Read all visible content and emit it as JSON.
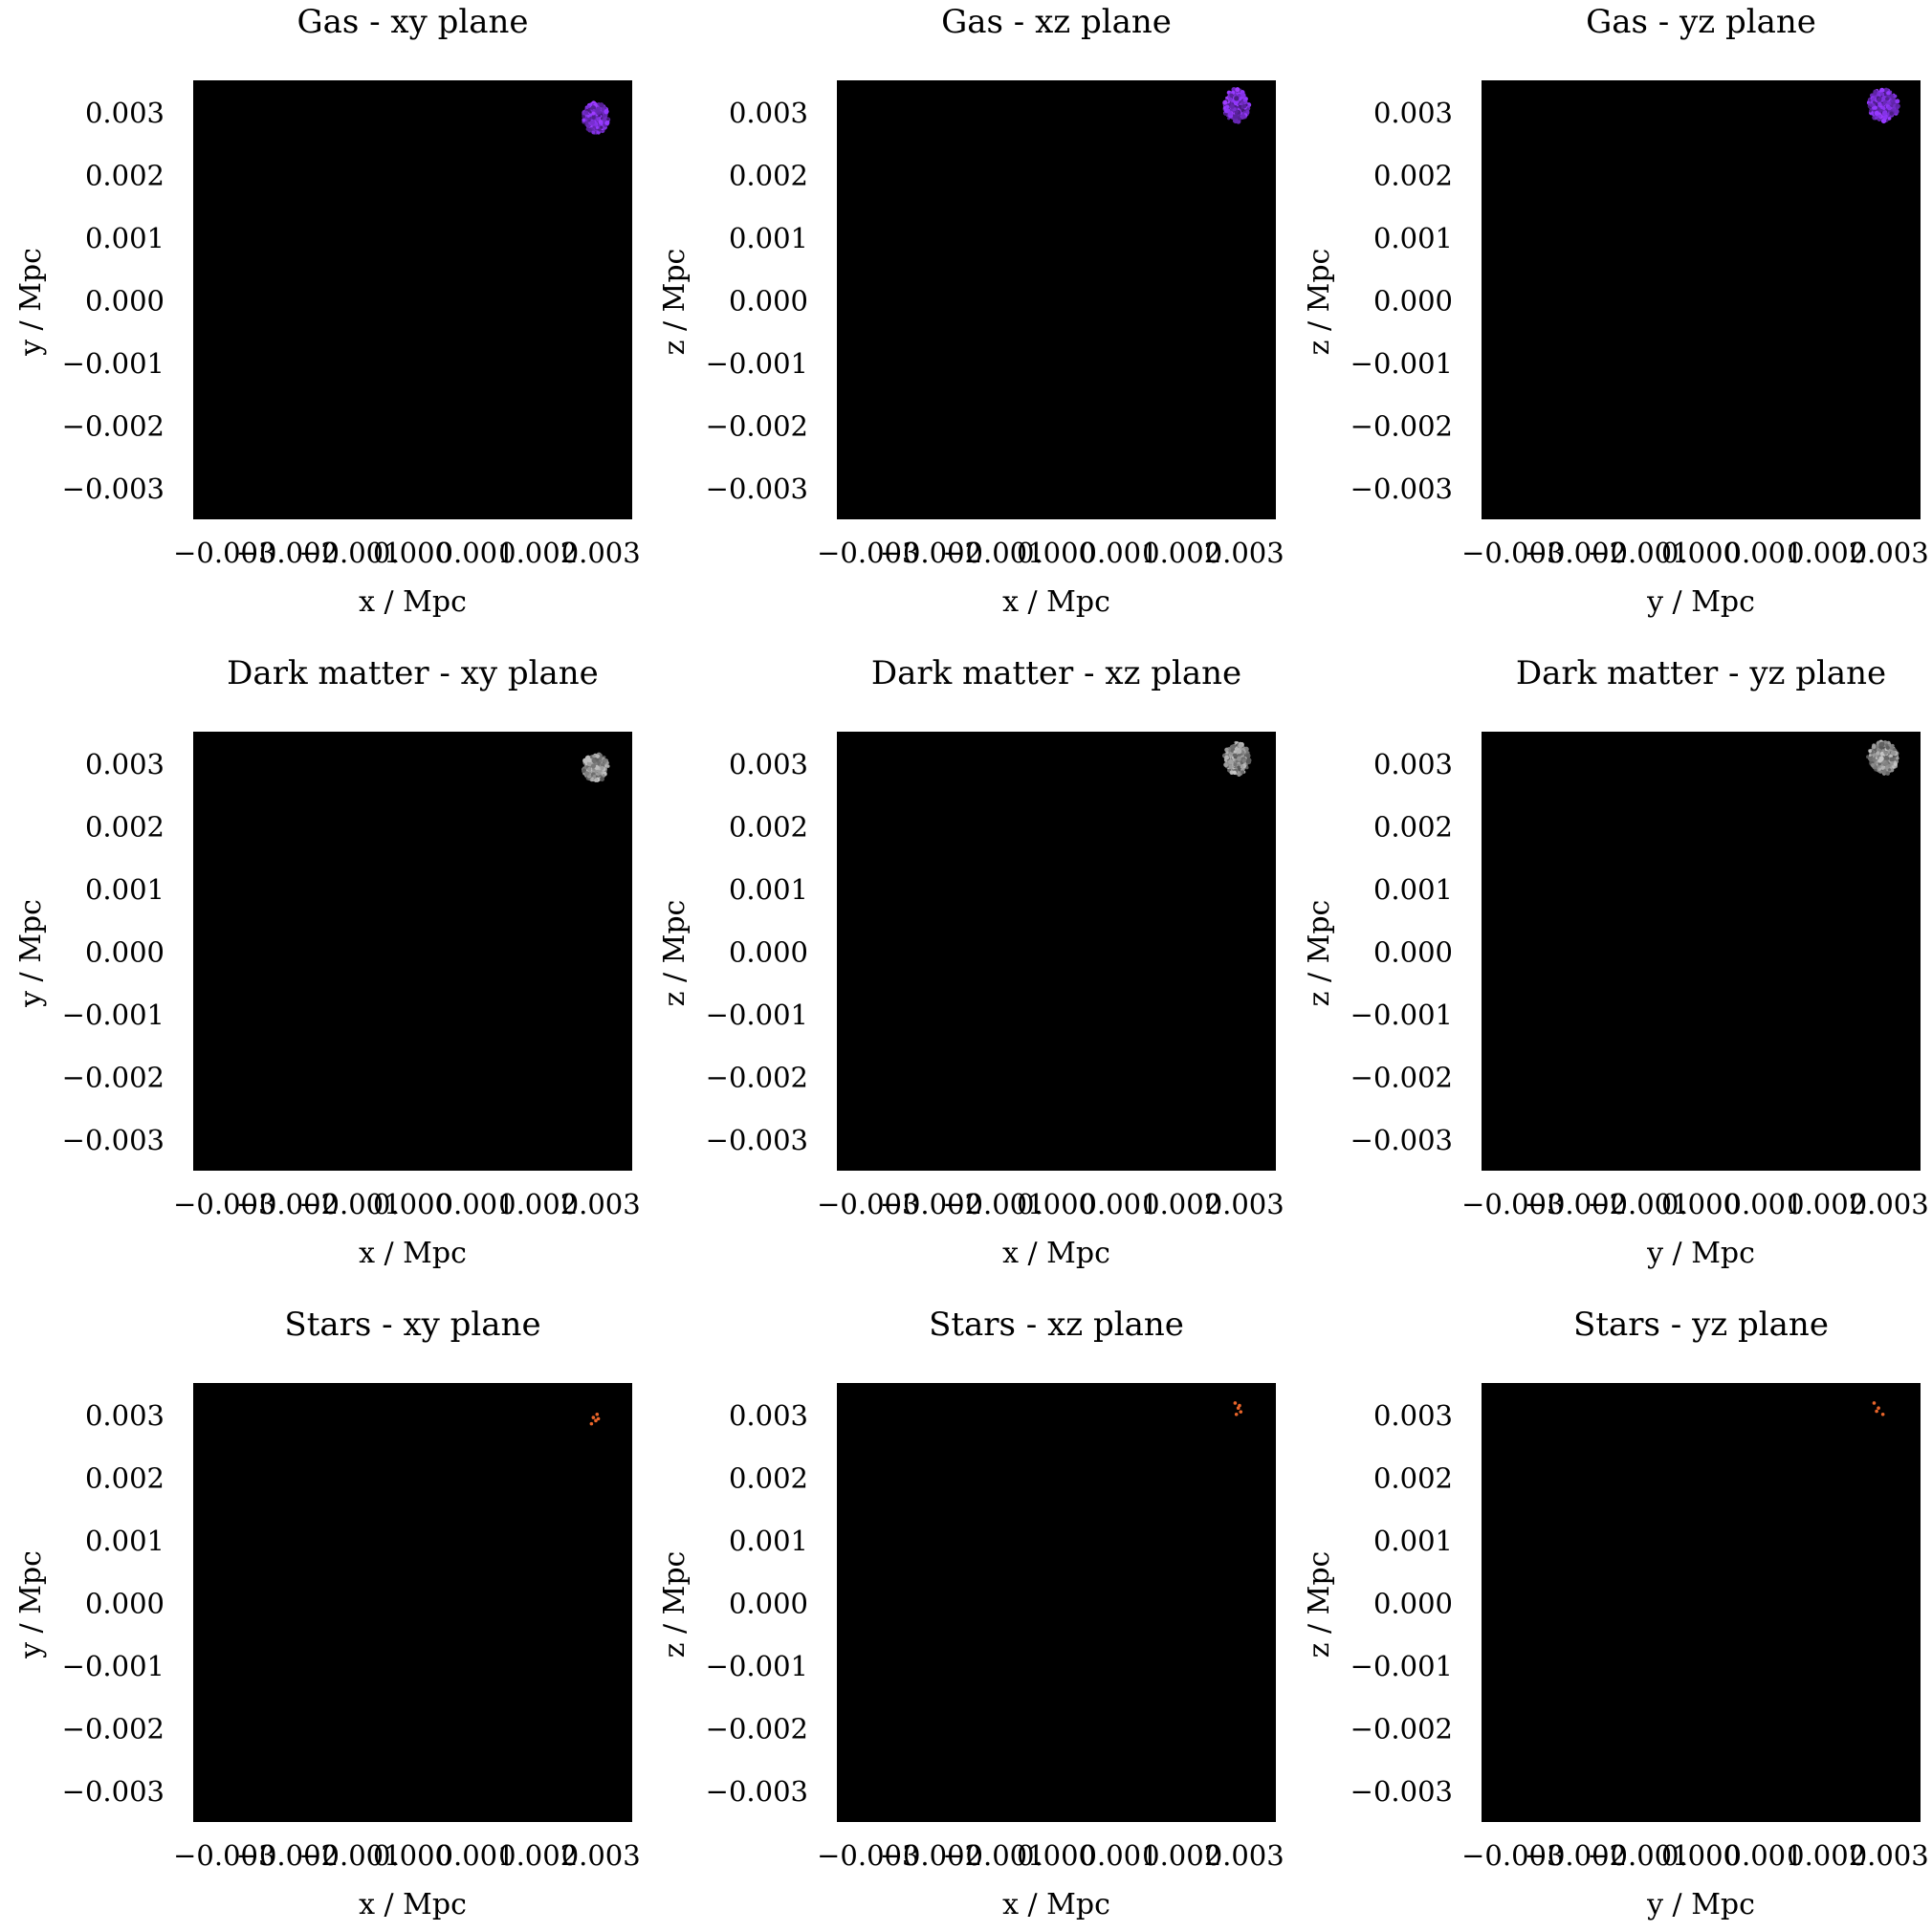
{
  "figure": {
    "background": "#ffffff",
    "panel_background": "#000000"
  },
  "chart_data": [
    {
      "type": "scatter",
      "component": "gas",
      "plane": "xy",
      "title": "Gas - xy plane",
      "xlabel": "x / Mpc",
      "ylabel": "y / Mpc",
      "xlim": [
        -0.0035,
        0.0035
      ],
      "ylim": [
        -0.0035,
        0.0035
      ],
      "xticks": [
        -0.003,
        -0.002,
        -0.001,
        0.0,
        0.001,
        0.002,
        0.003
      ],
      "xtick_labels": [
        "−0.003",
        "−0.002",
        "−0.001",
        "0.000",
        "0.001",
        "0.002",
        "0.003"
      ],
      "yticks": [
        0.003,
        0.002,
        0.001,
        0.0,
        -0.001,
        -0.002,
        -0.003
      ],
      "ytick_labels": [
        "0.003",
        "0.002",
        "0.001",
        "0.000",
        "−0.001",
        "−0.002",
        "−0.003"
      ],
      "color": "#7b2fd6",
      "grid": false,
      "cluster": {
        "center": [
          0.00292,
          0.0029
        ],
        "radius": [
          0.0002,
          0.00024
        ]
      }
    },
    {
      "type": "scatter",
      "component": "gas",
      "plane": "xz",
      "title": "Gas - xz plane",
      "xlabel": "x / Mpc",
      "ylabel": "z / Mpc",
      "xlim": [
        -0.0035,
        0.0035
      ],
      "ylim": [
        -0.0035,
        0.0035
      ],
      "xticks": [
        -0.003,
        -0.002,
        -0.001,
        0.0,
        0.001,
        0.002,
        0.003
      ],
      "xtick_labels": [
        "−0.003",
        "−0.002",
        "−0.001",
        "0.000",
        "0.001",
        "0.002",
        "0.003"
      ],
      "yticks": [
        0.003,
        0.002,
        0.001,
        0.0,
        -0.001,
        -0.002,
        -0.003
      ],
      "ytick_labels": [
        "0.003",
        "0.002",
        "0.001",
        "0.000",
        "−0.001",
        "−0.002",
        "−0.003"
      ],
      "color": "#7b2fd6",
      "grid": false,
      "cluster": {
        "center": [
          0.00287,
          0.0031
        ],
        "radius": [
          0.0002,
          0.00026
        ]
      }
    },
    {
      "type": "scatter",
      "component": "gas",
      "plane": "yz",
      "title": "Gas - yz plane",
      "xlabel": "y / Mpc",
      "ylabel": "z / Mpc",
      "xlim": [
        -0.0035,
        0.0035
      ],
      "ylim": [
        -0.0035,
        0.0035
      ],
      "xticks": [
        -0.003,
        -0.002,
        -0.001,
        0.0,
        0.001,
        0.002,
        0.003
      ],
      "xtick_labels": [
        "−0.003",
        "−0.002",
        "−0.001",
        "0.000",
        "0.001",
        "0.002",
        "0.003"
      ],
      "yticks": [
        0.003,
        0.002,
        0.001,
        0.0,
        -0.001,
        -0.002,
        -0.003
      ],
      "ytick_labels": [
        "0.003",
        "0.002",
        "0.001",
        "0.000",
        "−0.001",
        "−0.002",
        "−0.003"
      ],
      "color": "#7b2fd6",
      "grid": false,
      "cluster": {
        "center": [
          0.0029,
          0.0031
        ],
        "radius": [
          0.00024,
          0.00026
        ]
      }
    },
    {
      "type": "scatter",
      "component": "dark_matter",
      "plane": "xy",
      "title": "Dark matter - xy plane",
      "xlabel": "x / Mpc",
      "ylabel": "y / Mpc",
      "xlim": [
        -0.0035,
        0.0035
      ],
      "ylim": [
        -0.0035,
        0.0035
      ],
      "xticks": [
        -0.003,
        -0.002,
        -0.001,
        0.0,
        0.001,
        0.002,
        0.003
      ],
      "xtick_labels": [
        "−0.003",
        "−0.002",
        "−0.001",
        "0.000",
        "0.001",
        "0.002",
        "0.003"
      ],
      "yticks": [
        0.003,
        0.002,
        0.001,
        0.0,
        -0.001,
        -0.002,
        -0.003
      ],
      "ytick_labels": [
        "0.003",
        "0.002",
        "0.001",
        "0.000",
        "−0.001",
        "−0.002",
        "−0.003"
      ],
      "color": "#9a9a9a",
      "grid": false,
      "cluster": {
        "center": [
          0.00292,
          0.00293
        ],
        "radius": [
          0.0002,
          0.00022
        ]
      }
    },
    {
      "type": "scatter",
      "component": "dark_matter",
      "plane": "xz",
      "title": "Dark matter - xz plane",
      "xlabel": "x / Mpc",
      "ylabel": "z / Mpc",
      "xlim": [
        -0.0035,
        0.0035
      ],
      "ylim": [
        -0.0035,
        0.0035
      ],
      "xticks": [
        -0.003,
        -0.002,
        -0.001,
        0.0,
        0.001,
        0.002,
        0.003
      ],
      "xtick_labels": [
        "−0.003",
        "−0.002",
        "−0.001",
        "0.000",
        "0.001",
        "0.002",
        "0.003"
      ],
      "yticks": [
        0.003,
        0.002,
        0.001,
        0.0,
        -0.001,
        -0.002,
        -0.003
      ],
      "ytick_labels": [
        "0.003",
        "0.002",
        "0.001",
        "0.000",
        "−0.001",
        "−0.002",
        "−0.003"
      ],
      "color": "#9a9a9a",
      "grid": false,
      "cluster": {
        "center": [
          0.00288,
          0.00307
        ],
        "radius": [
          0.0002,
          0.00026
        ]
      }
    },
    {
      "type": "scatter",
      "component": "dark_matter",
      "plane": "yz",
      "title": "Dark matter - yz plane",
      "xlabel": "y / Mpc",
      "ylabel": "z / Mpc",
      "xlim": [
        -0.0035,
        0.0035
      ],
      "ylim": [
        -0.0035,
        0.0035
      ],
      "xticks": [
        -0.003,
        -0.002,
        -0.001,
        0.0,
        0.001,
        0.002,
        0.003
      ],
      "xtick_labels": [
        "−0.003",
        "−0.002",
        "−0.001",
        "0.000",
        "0.001",
        "0.002",
        "0.003"
      ],
      "yticks": [
        0.003,
        0.002,
        0.001,
        0.0,
        -0.001,
        -0.002,
        -0.003
      ],
      "ytick_labels": [
        "0.003",
        "0.002",
        "0.001",
        "0.000",
        "−0.001",
        "−0.002",
        "−0.003"
      ],
      "color": "#9a9a9a",
      "grid": false,
      "cluster": {
        "center": [
          0.0029,
          0.00308
        ],
        "radius": [
          0.00024,
          0.00026
        ]
      }
    },
    {
      "type": "scatter",
      "component": "stars",
      "plane": "xy",
      "title": "Stars - xy plane",
      "xlabel": "x / Mpc",
      "ylabel": "y / Mpc",
      "xlim": [
        -0.0035,
        0.0035
      ],
      "ylim": [
        -0.0035,
        0.0035
      ],
      "xticks": [
        -0.003,
        -0.002,
        -0.001,
        0.0,
        0.001,
        0.002,
        0.003
      ],
      "xtick_labels": [
        "−0.003",
        "−0.002",
        "−0.001",
        "0.000",
        "0.001",
        "0.002",
        "0.003"
      ],
      "yticks": [
        0.003,
        0.002,
        0.001,
        0.0,
        -0.001,
        -0.002,
        -0.003
      ],
      "ytick_labels": [
        "0.003",
        "0.002",
        "0.001",
        "0.000",
        "−0.001",
        "−0.002",
        "−0.003"
      ],
      "color": "#e8642a",
      "grid": false,
      "points": [
        [
          0.00288,
          0.00295
        ],
        [
          0.00292,
          0.0029
        ],
        [
          0.00296,
          0.00293
        ],
        [
          0.00285,
          0.00285
        ],
        [
          0.00294,
          0.003
        ]
      ]
    },
    {
      "type": "scatter",
      "component": "stars",
      "plane": "xz",
      "title": "Stars - xz plane",
      "xlabel": "x / Mpc",
      "ylabel": "z / Mpc",
      "xlim": [
        -0.0035,
        0.0035
      ],
      "ylim": [
        -0.0035,
        0.0035
      ],
      "xticks": [
        -0.003,
        -0.002,
        -0.001,
        0.0,
        0.001,
        0.002,
        0.003
      ],
      "xtick_labels": [
        "−0.003",
        "−0.002",
        "−0.001",
        "0.000",
        "0.001",
        "0.002",
        "0.003"
      ],
      "yticks": [
        0.003,
        0.002,
        0.001,
        0.0,
        -0.001,
        -0.002,
        -0.003
      ],
      "ytick_labels": [
        "0.003",
        "0.002",
        "0.001",
        "0.000",
        "−0.001",
        "−0.002",
        "−0.003"
      ],
      "color": "#e8642a",
      "grid": false,
      "points": [
        [
          0.00285,
          0.00318
        ],
        [
          0.0029,
          0.0031
        ],
        [
          0.00294,
          0.00304
        ],
        [
          0.00287,
          0.003
        ],
        [
          0.00292,
          0.00314
        ]
      ]
    },
    {
      "type": "scatter",
      "component": "stars",
      "plane": "yz",
      "title": "Stars - yz plane",
      "xlabel": "y / Mpc",
      "ylabel": "z / Mpc",
      "xlim": [
        -0.0035,
        0.0035
      ],
      "ylim": [
        -0.0035,
        0.0035
      ],
      "xticks": [
        -0.003,
        -0.002,
        -0.001,
        0.0,
        0.001,
        0.002,
        0.003
      ],
      "xtick_labels": [
        "−0.003",
        "−0.002",
        "−0.001",
        "0.000",
        "0.001",
        "0.002",
        "0.003"
      ],
      "yticks": [
        0.003,
        0.002,
        0.001,
        0.0,
        -0.001,
        -0.002,
        -0.003
      ],
      "ytick_labels": [
        "0.003",
        "0.002",
        "0.001",
        "0.000",
        "−0.001",
        "−0.002",
        "−0.003"
      ],
      "color": "#e8642a",
      "grid": false,
      "points": [
        [
          0.00276,
          0.00318
        ],
        [
          0.00283,
          0.0031
        ],
        [
          0.0029,
          0.003
        ],
        [
          0.0028,
          0.00305
        ]
      ]
    }
  ]
}
